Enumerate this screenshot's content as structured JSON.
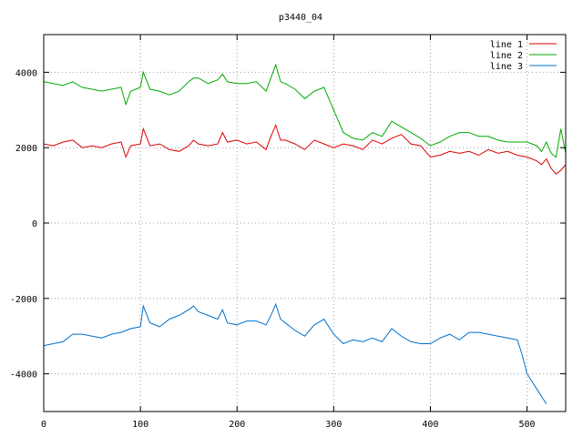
{
  "chart_data": {
    "type": "line",
    "title": "p3440_04",
    "xlabel": "",
    "ylabel": "",
    "xlim": [
      0,
      540
    ],
    "ylim": [
      -5000,
      5000
    ],
    "x_ticks": [
      0,
      100,
      200,
      300,
      400,
      500
    ],
    "y_ticks": [
      -4000,
      -2000,
      0,
      2000,
      4000
    ],
    "grid": true,
    "legend_position": "top-right",
    "series": [
      {
        "name": "line 1",
        "color": "#dd0000",
        "x": [
          0,
          10,
          20,
          30,
          40,
          50,
          60,
          70,
          80,
          85,
          90,
          100,
          103,
          110,
          120,
          130,
          140,
          150,
          155,
          160,
          170,
          180,
          185,
          190,
          200,
          210,
          220,
          230,
          235,
          240,
          245,
          250,
          260,
          270,
          280,
          290,
          300,
          310,
          320,
          330,
          340,
          350,
          360,
          370,
          380,
          390,
          400,
          410,
          420,
          430,
          440,
          450,
          460,
          470,
          480,
          490,
          500,
          510,
          515,
          520,
          525,
          530,
          535,
          540
        ],
        "y": [
          2100,
          2050,
          2150,
          2200,
          2000,
          2050,
          2000,
          2100,
          2150,
          1750,
          2050,
          2100,
          2500,
          2050,
          2100,
          1950,
          1900,
          2050,
          2200,
          2100,
          2050,
          2100,
          2400,
          2150,
          2200,
          2100,
          2150,
          1950,
          2300,
          2600,
          2200,
          2200,
          2100,
          1950,
          2200,
          2100,
          2000,
          2100,
          2050,
          1950,
          2200,
          2100,
          2250,
          2350,
          2100,
          2050,
          1750,
          1800,
          1900,
          1850,
          1900,
          1800,
          1950,
          1850,
          1900,
          1800,
          1750,
          1650,
          1550,
          1700,
          1450,
          1300,
          1400,
          1550
        ]
      },
      {
        "name": "line 2",
        "color": "#00aa00",
        "x": [
          0,
          10,
          20,
          30,
          40,
          50,
          60,
          70,
          80,
          85,
          90,
          100,
          103,
          110,
          120,
          130,
          140,
          150,
          155,
          160,
          170,
          180,
          185,
          190,
          200,
          210,
          220,
          230,
          235,
          240,
          245,
          250,
          260,
          270,
          280,
          290,
          300,
          310,
          320,
          330,
          340,
          350,
          360,
          370,
          380,
          390,
          400,
          410,
          420,
          430,
          440,
          450,
          460,
          470,
          480,
          490,
          500,
          510,
          515,
          520,
          525,
          530,
          535,
          540
        ],
        "y": [
          3750,
          3700,
          3650,
          3750,
          3600,
          3550,
          3500,
          3550,
          3600,
          3150,
          3500,
          3600,
          4000,
          3550,
          3500,
          3400,
          3500,
          3750,
          3850,
          3850,
          3700,
          3800,
          3950,
          3750,
          3700,
          3700,
          3750,
          3500,
          3850,
          4200,
          3750,
          3700,
          3550,
          3300,
          3500,
          3600,
          3000,
          2400,
          2250,
          2200,
          2400,
          2300,
          2700,
          2550,
          2400,
          2250,
          2050,
          2150,
          2300,
          2400,
          2400,
          2300,
          2300,
          2200,
          2150,
          2150,
          2150,
          2050,
          1900,
          2150,
          1850,
          1750,
          2500,
          1850
        ]
      },
      {
        "name": "line 3",
        "color": "#0070cc",
        "x": [
          0,
          10,
          20,
          30,
          40,
          50,
          60,
          70,
          80,
          85,
          90,
          100,
          103,
          110,
          120,
          130,
          140,
          150,
          155,
          160,
          170,
          180,
          185,
          190,
          200,
          210,
          220,
          230,
          235,
          240,
          245,
          250,
          260,
          270,
          280,
          290,
          300,
          310,
          320,
          330,
          340,
          350,
          360,
          370,
          380,
          390,
          400,
          410,
          420,
          430,
          440,
          450,
          460,
          470,
          480,
          490,
          495,
          500,
          505,
          510,
          515,
          520
        ],
        "y": [
          -3250,
          -3200,
          -3150,
          -2950,
          -2950,
          -3000,
          -3050,
          -2950,
          -2900,
          -2850,
          -2800,
          -2750,
          -2200,
          -2650,
          -2750,
          -2550,
          -2450,
          -2300,
          -2200,
          -2350,
          -2450,
          -2550,
          -2300,
          -2650,
          -2700,
          -2600,
          -2600,
          -2700,
          -2450,
          -2150,
          -2550,
          -2650,
          -2850,
          -3000,
          -2700,
          -2550,
          -2950,
          -3200,
          -3100,
          -3150,
          -3050,
          -3150,
          -2800,
          -3000,
          -3150,
          -3200,
          -3200,
          -3050,
          -2950,
          -3100,
          -2900,
          -2900,
          -2950,
          -3000,
          -3050,
          -3100,
          -3500,
          -4000,
          -4200,
          -4400,
          -4600,
          -4800
        ]
      }
    ]
  }
}
